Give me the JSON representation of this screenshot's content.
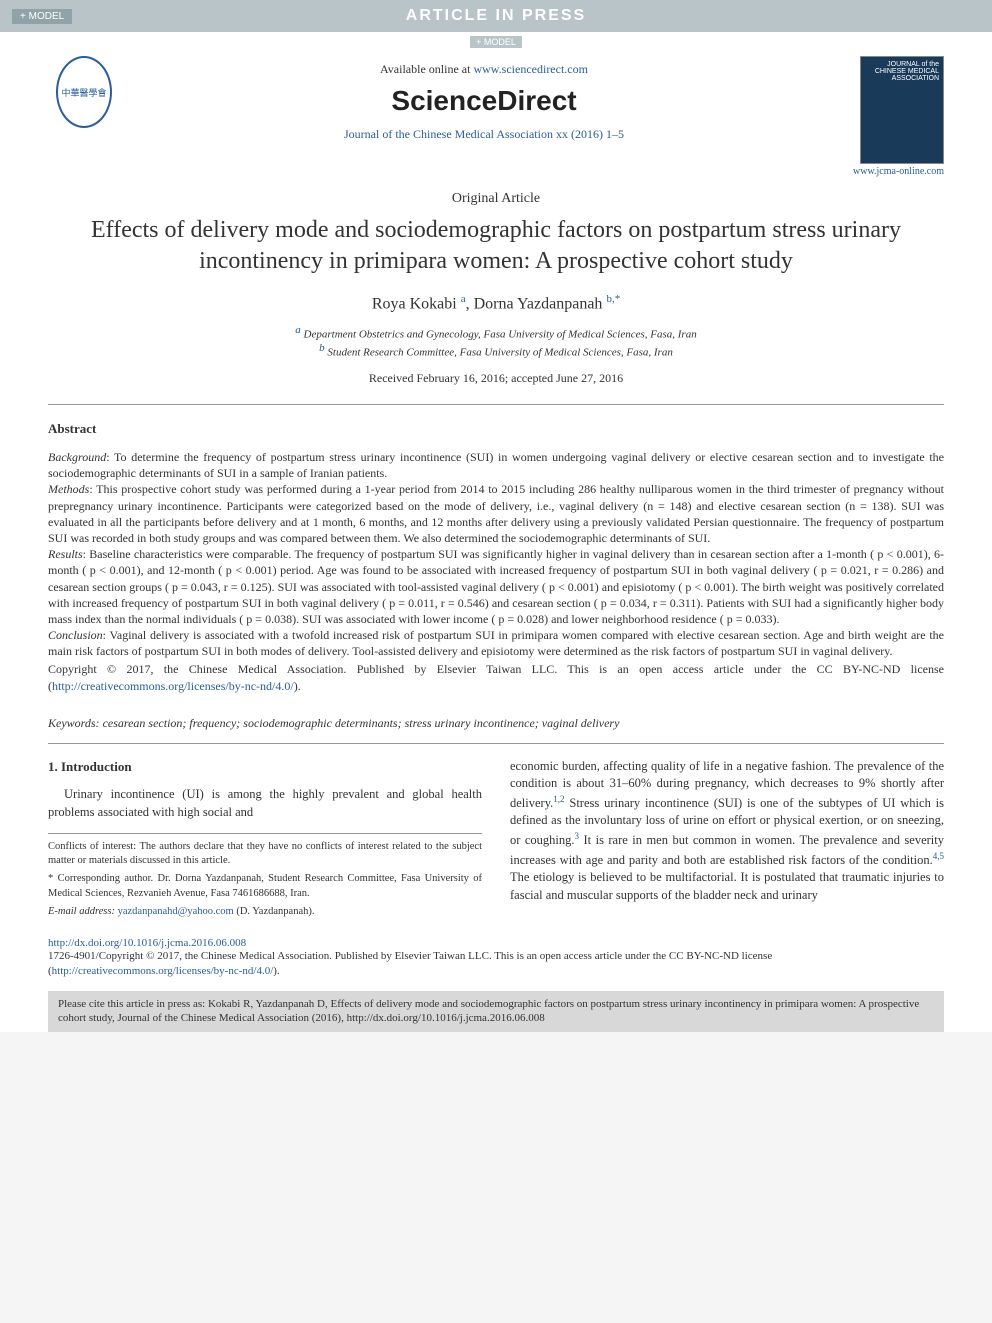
{
  "banner": {
    "plus": "+ MODEL",
    "title": "ARTICLE IN PRESS",
    "modelTag": "+ MODEL"
  },
  "header": {
    "available": "Available online at ",
    "availableUrl": "www.sciencedirect.com",
    "sdLogo": "ScienceDirect",
    "journalLine": "Journal of the Chinese Medical Association xx (2016) 1–5",
    "coverText": "JOURNAL of the CHINESE MEDICAL ASSOCIATION",
    "coverLink": "www.jcma-online.com"
  },
  "article": {
    "type": "Original Article",
    "title": "Effects of delivery mode and sociodemographic factors on postpartum stress urinary incontinency in primipara women: A prospective cohort study",
    "authors": [
      {
        "name": "Roya Kokabi ",
        "sup": "a"
      },
      {
        "name": ", Dorna Yazdanpanah ",
        "sup": "b,*"
      }
    ],
    "affiliations": [
      {
        "sup": "a",
        "text": " Department Obstetrics and Gynecology, Fasa University of Medical Sciences, Fasa, Iran"
      },
      {
        "sup": "b",
        "text": " Student Research Committee, Fasa University of Medical Sciences, Fasa, Iran"
      }
    ],
    "dates": "Received February 16, 2016; accepted June 27, 2016"
  },
  "abstract": {
    "head": "Abstract",
    "blocks": [
      {
        "label": "Background",
        "text": ": To determine the frequency of postpartum stress urinary incontinence (SUI) in women undergoing vaginal delivery or elective cesarean section and to investigate the sociodemographic determinants of SUI in a sample of Iranian patients."
      },
      {
        "label": "Methods",
        "text": ": This prospective cohort study was performed during a 1-year period from 2014 to 2015 including 286 healthy nulliparous women in the third trimester of pregnancy without prepregnancy urinary incontinence. Participants were categorized based on the mode of delivery, i.e., vaginal delivery (n = 148) and elective cesarean section (n = 138). SUI was evaluated in all the participants before delivery and at 1 month, 6 months, and 12 months after delivery using a previously validated Persian questionnaire. The frequency of postpartum SUI was recorded in both study groups and was compared between them. We also determined the sociodemographic determinants of SUI."
      },
      {
        "label": "Results",
        "text": ": Baseline characteristics were comparable. The frequency of postpartum SUI was significantly higher in vaginal delivery than in cesarean section after a 1-month ( p < 0.001), 6-month ( p < 0.001), and 12-month ( p < 0.001) period. Age was found to be associated with increased frequency of postpartum SUI in both vaginal delivery ( p = 0.021, r = 0.286) and cesarean section groups ( p = 0.043, r = 0.125). SUI was associated with tool-assisted vaginal delivery ( p < 0.001) and episiotomy ( p < 0.001). The birth weight was positively correlated with increased frequency of postpartum SUI in both vaginal delivery ( p = 0.011, r = 0.546) and cesarean section ( p = 0.034, r = 0.311). Patients with SUI had a significantly higher body mass index than the normal individuals ( p = 0.038). SUI was associated with lower income ( p = 0.028) and lower neighborhood residence ( p = 0.033)."
      },
      {
        "label": "Conclusion",
        "text": ": Vaginal delivery is associated with a twofold increased risk of postpartum SUI in primipara women compared with elective cesarean section. Age and birth weight are the main risk factors of postpartum SUI in both modes of delivery. Tool-assisted delivery and episiotomy were determined as the risk factors of postpartum SUI in vaginal delivery."
      }
    ],
    "copyright": "Copyright © 2017, the Chinese Medical Association. Published by Elsevier Taiwan LLC. This is an open access article under the CC BY-NC-ND license (",
    "licenseUrl": "http://creativecommons.org/licenses/by-nc-nd/4.0/",
    "copyrightEnd": ")."
  },
  "keywords": {
    "label": "Keywords: ",
    "text": "cesarean section; frequency; sociodemographic determinants; stress urinary incontinence; vaginal delivery"
  },
  "body": {
    "sectionHead": "1. Introduction",
    "leftPara": "Urinary incontinence (UI) is among the highly prevalent and global health problems associated with high social and",
    "rightParaPart1": "economic burden, affecting quality of life in a negative fashion. The prevalence of the condition is about 31–60% during pregnancy, which decreases to 9% shortly after delivery.",
    "rightSup1": "1,2",
    "rightParaPart2": " Stress urinary incontinence (SUI) is one of the subtypes of UI which is defined as the involuntary loss of urine on effort or physical exertion, or on sneezing, or coughing.",
    "rightSup2": "3",
    "rightParaPart3": " It is rare in men but common in women. The prevalence and severity increases with age and parity and both are established risk factors of the condition.",
    "rightSup3": "4,5",
    "rightParaPart4": " The etiology is believed to be multifactorial. It is postulated that traumatic injuries to fascial and muscular supports of the bladder neck and urinary"
  },
  "footnotes": {
    "conflict": "Conflicts of interest: The authors declare that they have no conflicts of interest related to the subject matter or materials discussed in this article.",
    "corresponding": "* Corresponding author. Dr. Dorna Yazdanpanah, Student Research Committee, Fasa University of Medical Sciences, Rezvanieh Avenue, Fasa 7461686688, Iran.",
    "emailLabel": "E-mail address: ",
    "email": "yazdanpanahd@yahoo.com",
    "emailAfter": " (D. Yazdanpanah)."
  },
  "doi": {
    "link": "http://dx.doi.org/10.1016/j.jcma.2016.06.008",
    "issn": "1726-4901/Copyright © 2017, the Chinese Medical Association. Published by Elsevier Taiwan LLC. This is an open access article under the CC BY-NC-ND license (",
    "issnUrl": "http://creativecommons.org/licenses/by-nc-nd/4.0/",
    "issnEnd": ")."
  },
  "citeBox": "Please cite this article in press as: Kokabi R, Yazdanpanah D, Effects of delivery mode and sociodemographic factors on postpartum stress urinary incontinency in primipara women: A prospective cohort study, Journal of the Chinese Medical Association (2016), http://dx.doi.org/10.1016/j.jcma.2016.06.008",
  "colors": {
    "bannerBg": "#b8c4c8",
    "linkBlue": "#2a5c9a",
    "citeBoxBg": "#d8d8d8"
  }
}
